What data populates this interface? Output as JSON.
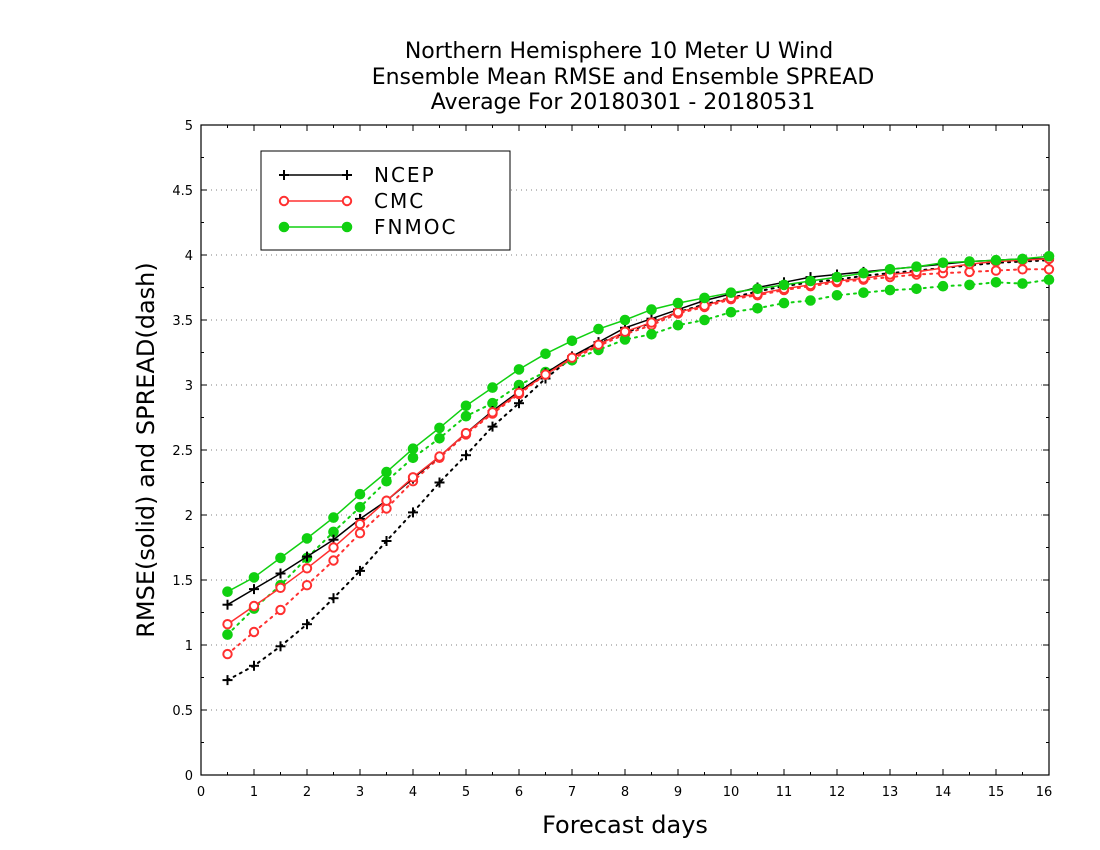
{
  "chart_data": {
    "type": "line",
    "title_lines": [
      "Northern Hemisphere 10 Meter U Wind",
      "Ensemble Mean RMSE and Ensemble SPREAD",
      "Average For 20180301 - 20180531"
    ],
    "xlabel": "Forecast days",
    "ylabel": "RMSE(solid) and SPREAD(dash)",
    "xlim": [
      0,
      16
    ],
    "ylim": [
      0,
      5
    ],
    "xticks": [
      0,
      1,
      2,
      3,
      4,
      5,
      6,
      7,
      8,
      9,
      10,
      11,
      12,
      13,
      14,
      15,
      16
    ],
    "yticks": [
      0,
      0.5,
      1,
      1.5,
      2,
      2.5,
      3,
      3.5,
      4,
      4.5,
      5
    ],
    "ytick_labels": [
      "0",
      "0.5",
      "1",
      "1.5",
      "2",
      "2.5",
      "3",
      "3.5",
      "4",
      "4.5",
      "5"
    ],
    "grid": "horizontal dotted",
    "legend_position": "top-left",
    "x": [
      0.5,
      1,
      1.5,
      2,
      2.5,
      3,
      3.5,
      4,
      4.5,
      5,
      5.5,
      6,
      6.5,
      7,
      7.5,
      8,
      8.5,
      9,
      9.5,
      10,
      10.5,
      11,
      11.5,
      12,
      12.5,
      13,
      13.5,
      14,
      14.5,
      15,
      15.5,
      16
    ],
    "series": [
      {
        "name": "NCEP",
        "color": "#000000",
        "marker": "plus",
        "rmse": [
          1.31,
          1.43,
          1.55,
          1.68,
          1.81,
          1.97,
          2.11,
          2.28,
          2.45,
          2.63,
          2.8,
          2.95,
          3.09,
          3.22,
          3.33,
          3.44,
          3.51,
          3.58,
          3.65,
          3.7,
          3.75,
          3.79,
          3.83,
          3.85,
          3.87,
          3.89,
          3.91,
          3.93,
          3.95,
          3.96,
          3.97,
          3.97
        ],
        "spread": [
          0.73,
          0.84,
          0.99,
          1.16,
          1.36,
          1.57,
          1.8,
          2.02,
          2.25,
          2.46,
          2.68,
          2.86,
          3.05,
          3.21,
          3.32,
          3.4,
          3.48,
          3.56,
          3.62,
          3.67,
          3.72,
          3.76,
          3.79,
          3.81,
          3.84,
          3.86,
          3.88,
          3.9,
          3.92,
          3.94,
          3.95,
          3.96
        ]
      },
      {
        "name": "CMC",
        "color": "#ff3030",
        "marker": "circle-open",
        "rmse": [
          1.16,
          1.3,
          1.44,
          1.59,
          1.75,
          1.93,
          2.11,
          2.29,
          2.45,
          2.63,
          2.79,
          2.94,
          3.08,
          3.21,
          3.31,
          3.41,
          3.48,
          3.56,
          3.61,
          3.67,
          3.7,
          3.74,
          3.77,
          3.8,
          3.82,
          3.85,
          3.87,
          3.9,
          3.93,
          3.95,
          3.96,
          3.97
        ],
        "spread": [
          0.93,
          1.1,
          1.27,
          1.46,
          1.65,
          1.86,
          2.05,
          2.26,
          2.44,
          2.62,
          2.78,
          2.93,
          3.08,
          3.2,
          3.3,
          3.39,
          3.46,
          3.55,
          3.6,
          3.66,
          3.69,
          3.73,
          3.76,
          3.79,
          3.81,
          3.83,
          3.85,
          3.86,
          3.87,
          3.88,
          3.89,
          3.89
        ]
      },
      {
        "name": "FNMOC",
        "color": "#10d010",
        "marker": "circle-filled",
        "rmse": [
          1.41,
          1.52,
          1.67,
          1.82,
          1.98,
          2.16,
          2.33,
          2.51,
          2.67,
          2.84,
          2.98,
          3.12,
          3.24,
          3.34,
          3.43,
          3.5,
          3.58,
          3.63,
          3.67,
          3.71,
          3.74,
          3.77,
          3.8,
          3.83,
          3.86,
          3.89,
          3.91,
          3.94,
          3.95,
          3.96,
          3.97,
          3.99
        ],
        "spread": [
          1.08,
          1.28,
          1.46,
          1.67,
          1.87,
          2.06,
          2.26,
          2.44,
          2.59,
          2.76,
          2.86,
          3.0,
          3.1,
          3.19,
          3.27,
          3.35,
          3.39,
          3.46,
          3.5,
          3.56,
          3.59,
          3.63,
          3.65,
          3.69,
          3.71,
          3.73,
          3.74,
          3.76,
          3.77,
          3.79,
          3.78,
          3.81
        ]
      }
    ]
  }
}
